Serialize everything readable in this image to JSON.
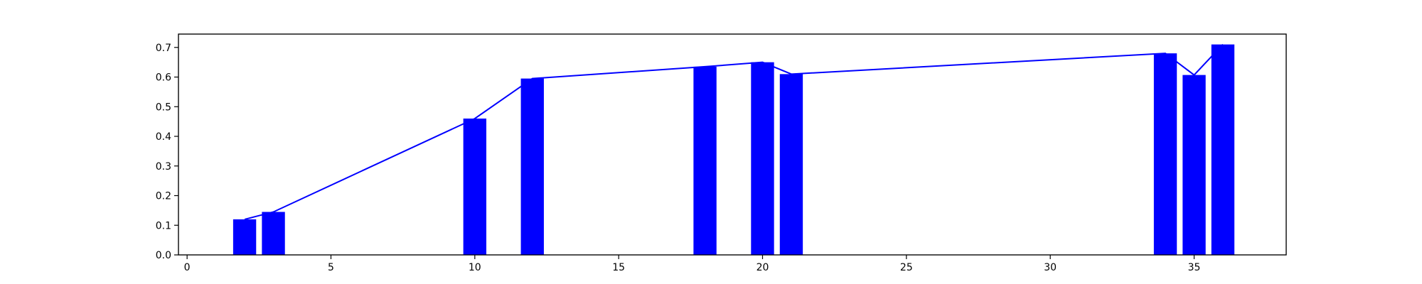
{
  "chart_data": {
    "type": "bar",
    "title": "",
    "xlabel": "",
    "ylabel": "",
    "x": [
      2,
      3,
      10,
      12,
      18,
      20,
      21,
      34,
      35,
      36
    ],
    "values": [
      0.12,
      0.145,
      0.46,
      0.595,
      0.635,
      0.65,
      0.61,
      0.68,
      0.607,
      0.71
    ],
    "bar_width": 0.8,
    "overlay_line": true,
    "xlim": [
      -0.3,
      38.2
    ],
    "ylim": [
      0,
      0.745
    ],
    "xticks": [
      0,
      5,
      10,
      15,
      20,
      25,
      30,
      35
    ],
    "yticks": [
      0.0,
      0.1,
      0.2,
      0.3,
      0.4,
      0.5,
      0.6,
      0.7
    ],
    "ytick_labels": [
      "0.0",
      "0.1",
      "0.2",
      "0.3",
      "0.4",
      "0.5",
      "0.6",
      "0.7"
    ],
    "grid": false,
    "legend": "none",
    "colors": {
      "bar": "#0000ff",
      "line": "#0000ff"
    }
  }
}
